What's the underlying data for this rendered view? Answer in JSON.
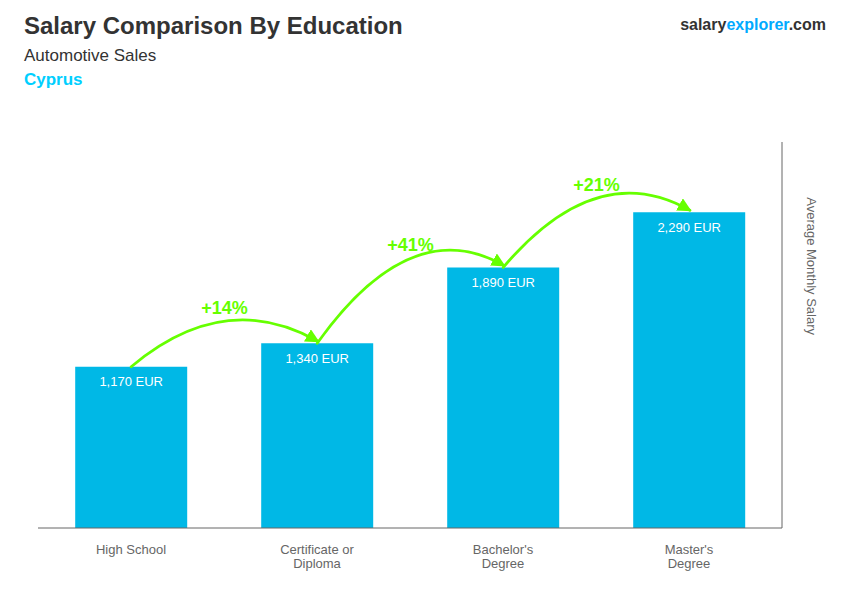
{
  "chart_data": {
    "type": "bar",
    "title": "Salary Comparison By Education",
    "subtitle": "Automotive Sales",
    "categories": [
      "High School",
      "Certificate or\nDiploma",
      "Bachelor's\nDegree",
      "Master's\nDegree"
    ],
    "values": [
      1170,
      1340,
      1890,
      2290
    ],
    "value_labels": [
      "1,170 EUR",
      "1,340 EUR",
      "1,890 EUR",
      "2,290 EUR"
    ],
    "data_labels": true,
    "color": "#00b8e6",
    "ylim": [
      0,
      2800
    ],
    "ylabel": "Average Monthly Salary",
    "tick_labels": "x",
    "grid": false,
    "annotations": [
      {
        "text": "Cyprus",
        "color": "#00cfff"
      },
      {
        "text": "+14%",
        "color": "#66ff00",
        "arrow": [
          "High School",
          "Certificate or\nDiploma"
        ]
      },
      {
        "text": "+41%",
        "color": "#66ff00",
        "arrow": [
          "Certificate or\nDiploma",
          "Bachelor's\nDegree"
        ]
      },
      {
        "text": "+21%",
        "color": "#66ff00",
        "arrow": [
          "Bachelor's\nDegree",
          "Master's\nDegree"
        ]
      }
    ],
    "watermark": [
      {
        "text": "salary"
      },
      {
        "text": "explorer",
        "color": "#00aaff"
      },
      {
        "text": ".com"
      }
    ]
  }
}
